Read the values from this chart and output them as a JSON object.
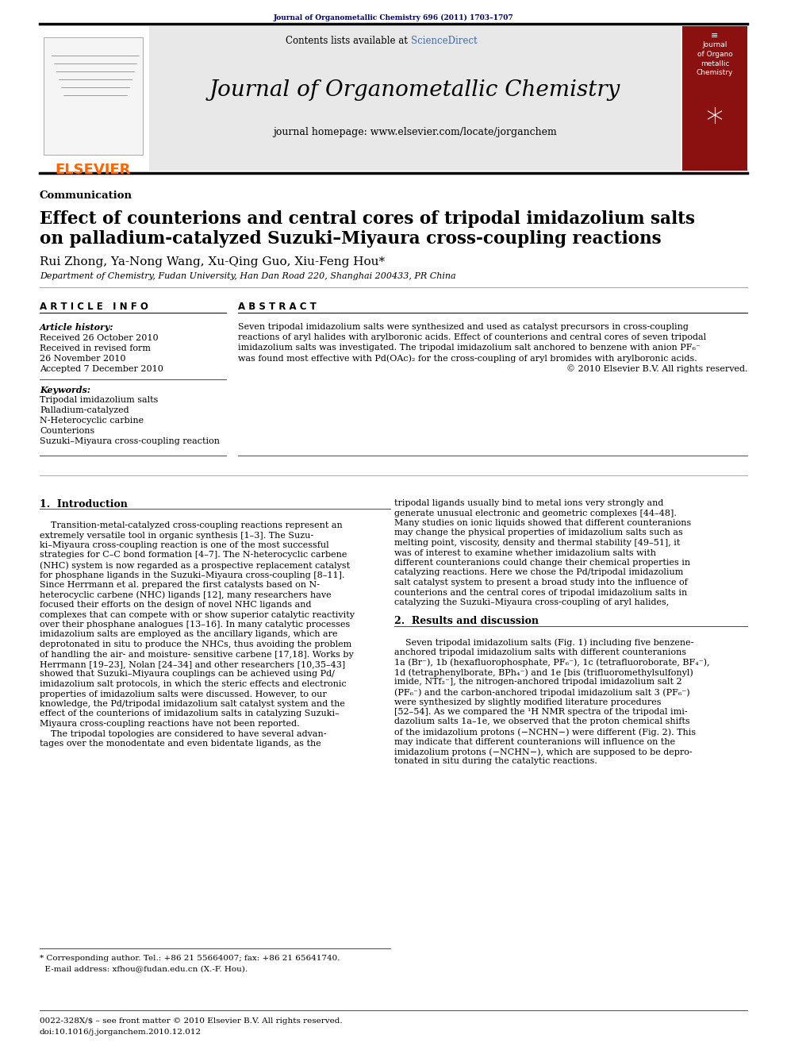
{
  "background_color": "#ffffff",
  "top_citation": "Journal of Organometallic Chemistry 696 (2011) 1703–1707",
  "journal_title": "Journal of Organometallic Chemistry",
  "journal_homepage": "journal homepage: www.elsevier.com/locate/jorganchem",
  "contents_available": "Contents lists available at ",
  "sciencedirect": "ScienceDirect",
  "elsevier_color": "#FF6600",
  "sciencedirect_color": "#4169AA",
  "header_bg": "#e8e8e8",
  "article_type": "Communication",
  "paper_title_line1": "Effect of counterions and central cores of tripodal imidazolium salts",
  "paper_title_line2": "on palladium-catalyzed Suzuki–Miyaura cross-coupling reactions",
  "authors": "Rui Zhong, Ya-Nong Wang, Xu-Qing Guo, Xiu-Feng Hou*",
  "affiliation": "Department of Chemistry, Fudan University, Han Dan Road 220, Shanghai 200433, PR China",
  "article_info_label": "A R T I C L E   I N F O",
  "abstract_label": "A B S T R A C T",
  "article_history_label": "Article history:",
  "received_line1": "Received 26 October 2010",
  "received_line2": "Received in revised form",
  "received_line3": "26 November 2010",
  "accepted_line": "Accepted 7 December 2010",
  "keywords_label": "Keywords:",
  "keywords": [
    "Tripodal imidazolium salts",
    "Palladium-catalyzed",
    "N-Heterocyclic carbine",
    "Counterions",
    "Suzuki–Miyaura cross-coupling reaction"
  ],
  "abstract_text_lines": [
    "Seven tripodal imidazolium salts were synthesized and used as catalyst precursors in cross-coupling",
    "reactions of aryl halides with arylboronic acids. Effect of counterions and central cores of seven tripodal",
    "imidazolium salts was investigated. The tripodal imidazolium salt anchored to benzene with anion PF₆⁻",
    "was found most effective with Pd(OAc)₂ for the cross-coupling of aryl bromides with arylboronic acids.",
    "© 2010 Elsevier B.V. All rights reserved."
  ],
  "section1_title": "1.  Introduction",
  "left_col_lines": [
    "    Transition-metal-catalyzed cross-coupling reactions represent an",
    "extremely versatile tool in organic synthesis [1–3]. The Suzu-",
    "ki–Miyaura cross-coupling reaction is one of the most successful",
    "strategies for C–C bond formation [4–7]. The N-heterocyclic carbene",
    "(NHC) system is now regarded as a prospective replacement catalyst",
    "for phosphane ligands in the Suzuki–Miyaura cross-coupling [8–11].",
    "Since Herrmann et al. prepared the first catalysts based on N-",
    "heterocyclic carbene (NHC) ligands [12], many researchers have",
    "focused their efforts on the design of novel NHC ligands and",
    "complexes that can compete with or show superior catalytic reactivity",
    "over their phosphane analogues [13–16]. In many catalytic processes",
    "imidazolium salts are employed as the ancillary ligands, which are",
    "deprotonated in situ to produce the NHCs, thus avoiding the problem",
    "of handling the air- and moisture- sensitive carbene [17,18]. Works by",
    "Herrmann [19–23], Nolan [24–34] and other researchers [10,35–43]",
    "showed that Suzuki–Miyaura couplings can be achieved using Pd/",
    "imidazolium salt protocols, in which the steric effects and electronic",
    "properties of imidazolium salts were discussed. However, to our",
    "knowledge, the Pd/tripodal imidazolium salt catalyst system and the",
    "effect of the counterions of imidazolium salts in catalyzing Suzuki–",
    "Miyaura cross-coupling reactions have not been reported.",
    "    The tripodal topologies are considered to have several advan-",
    "tages over the monodentate and even bidentate ligands, as the"
  ],
  "right_col_lines": [
    "tripodal ligands usually bind to metal ions very strongly and",
    "generate unusual electronic and geometric complexes [44–48].",
    "Many studies on ionic liquids showed that different counteranions",
    "may change the physical properties of imidazolium salts such as",
    "melting point, viscosity, density and thermal stability [49–51], it",
    "was of interest to examine whether imidazolium salts with",
    "different counteranions could change their chemical properties in",
    "catalyzing reactions. Here we chose the Pd/tripodal imidazolium",
    "salt catalyst system to present a broad study into the influence of",
    "counterions and the central cores of tripodal imidazolium salts in",
    "catalyzing the Suzuki–Miyaura cross-coupling of aryl halides,"
  ],
  "section2_title": "2.  Results and discussion",
  "results_col_lines": [
    "    Seven tripodal imidazolium salts (Fig. 1) including five benzene-",
    "anchored tripodal imidazolium salts with different counteranions",
    "1a (Br⁻), 1b (hexafluorophosphate, PF₆⁻), 1c (tetrafluoroborate, BF₄⁻),",
    "1d (tetraphenylborate, BPh₄⁻) and 1e [bis (trifluoromethylsulfonyl)",
    "imide, NTf₂⁻], the nitrogen-anchored tripodal imidazolium salt 2",
    "(PF₆⁻) and the carbon-anchored tripodal imidazolium salt 3 (PF₆⁻)",
    "were synthesized by slightly modified literature procedures",
    "[52–54]. As we compared the ¹H NMR spectra of the tripodal imi-",
    "dazolium salts 1a–1e, we observed that the proton chemical shifts",
    "of the imidazolium protons (−NCHN−) were different (Fig. 2). This",
    "may indicate that different counteranions will influence on the",
    "imidazolium protons (−NCHN−), which are supposed to be depro-",
    "tonated in situ during the catalytic reactions."
  ],
  "footnote_lines": [
    "* Corresponding author. Tel.: +86 21 55664007; fax: +86 21 65641740.",
    "  E-mail address: xfhou@fudan.edu.cn (X.-F. Hou)."
  ],
  "footer_left": "0022-328X/$ – see front matter © 2010 Elsevier B.V. All rights reserved.",
  "footer_doi": "doi:10.1016/j.jorganchem.2010.12.012",
  "dark_navy": "#000066",
  "text_color": "#000000",
  "red_cover_color": "#8B1010",
  "cover_text_lines": [
    "Journal",
    "of Organo",
    "metallic",
    "Chemistry"
  ]
}
